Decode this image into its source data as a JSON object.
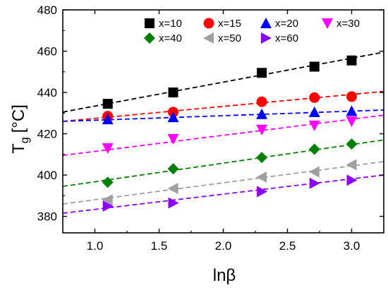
{
  "chart_data": {
    "type": "scatter",
    "title": "",
    "xlabel": "lnβ",
    "ylabel": "T",
    "ylabel_subscript": "g",
    "ylabel_unit": "[°C]",
    "xlim": [
      0.75,
      3.25
    ],
    "ylim": [
      372,
      480
    ],
    "xticks": [
      "1.0",
      "1.5",
      "2.0",
      "2.5",
      "3.0"
    ],
    "yticks": [
      "380",
      "400",
      "420",
      "440",
      "460",
      "480"
    ],
    "grid": false,
    "legend_position": "top-right",
    "x": [
      1.1,
      1.61,
      2.3,
      2.71,
      3.0
    ],
    "series": [
      {
        "name": "x=10",
        "color": "#000000",
        "marker": "square",
        "values": [
          434.5,
          440,
          449.5,
          452.5,
          455.5
        ],
        "fit": [
          430.5,
          459.5
        ]
      },
      {
        "name": "x=15",
        "color": "#ff0000",
        "marker": "circle",
        "values": [
          428.5,
          430.5,
          435.5,
          437.5,
          438
        ],
        "fit": [
          426,
          440.5
        ]
      },
      {
        "name": "x=20",
        "color": "#0000ff",
        "marker": "triangle-up",
        "values": [
          427,
          428,
          429.5,
          430.5,
          431
        ],
        "fit": [
          426,
          431.5
        ]
      },
      {
        "name": "x=30",
        "color": "#ff00ff",
        "marker": "triangle-down",
        "values": [
          413,
          417.5,
          422,
          424,
          426
        ],
        "fit": [
          409.5,
          429
        ]
      },
      {
        "name": "x=40",
        "color": "#008000",
        "marker": "diamond",
        "values": [
          396.5,
          403,
          408.5,
          412.5,
          415
        ],
        "fit": [
          394.5,
          417
        ]
      },
      {
        "name": "x=50",
        "color": "#a0a0a0",
        "marker": "triangle-left",
        "values": [
          388,
          393.5,
          399,
          401.5,
          405
        ],
        "fit": [
          386,
          406.5
        ]
      },
      {
        "name": "x=60",
        "color": "#8b00ff",
        "marker": "triangle-right",
        "values": [
          385,
          386.5,
          392,
          396,
          397.5
        ],
        "fit": [
          381.5,
          400
        ]
      }
    ]
  }
}
